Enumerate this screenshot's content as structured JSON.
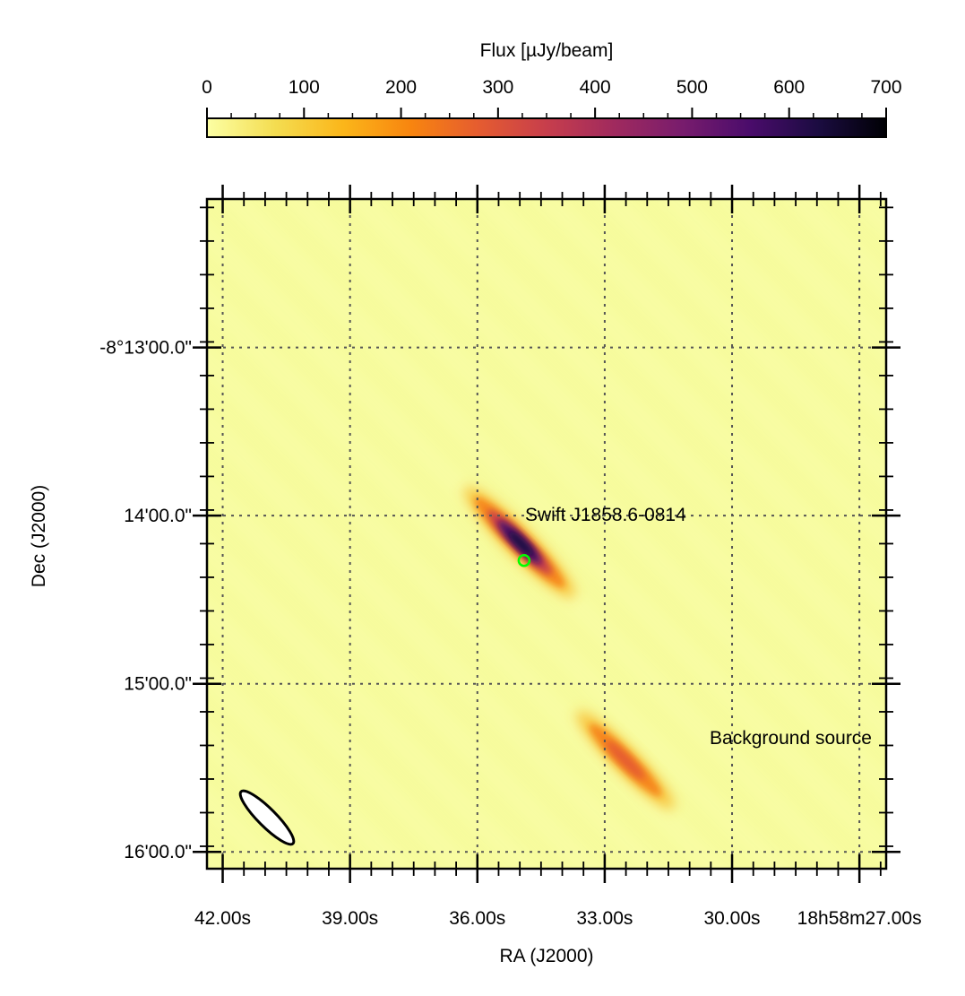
{
  "chart_data": {
    "type": "heatmap",
    "title": "",
    "xlabel": "RA (J2000)",
    "ylabel": "Dec (J2000)",
    "colorbar": {
      "label": "Flux [µJy/beam]",
      "min": 0,
      "max": 700,
      "ticks": [
        0,
        100,
        200,
        300,
        400,
        500,
        600,
        700
      ],
      "tick_labels": [
        "0",
        "100",
        "200",
        "300",
        "400",
        "500",
        "600",
        "700"
      ],
      "colormap": "inferno_r",
      "placement": "top"
    },
    "xlim": [
      42.37,
      26.37
    ],
    "ylim": [
      966.0,
      727.0
    ],
    "x_ticks": [
      42,
      39,
      36,
      33,
      30,
      27
    ],
    "x_tick_labels": [
      "42.00s",
      "39.00s",
      "36.00s",
      "33.00s",
      "30.00s",
      "18h58m27.00s"
    ],
    "y_ticks": [
      780,
      840,
      900,
      960
    ],
    "y_tick_labels": [
      "-8°13'00.0\"",
      "14'00.0\"",
      "15'00.0\"",
      "16'00.0\""
    ],
    "grid": true,
    "sources": [
      {
        "label": "Swift J1858.6-0814",
        "ra": 34.9,
        "dec": 856.0,
        "peak": 700
      },
      {
        "label": "Background source",
        "ra": 32.4,
        "dec": 931.0,
        "peak": 420
      }
    ],
    "marker": {
      "ra": 34.9,
      "dec": 856.0,
      "color": "#00ff00"
    },
    "beam": {
      "ra": 41.0,
      "dec": 955.0
    }
  }
}
